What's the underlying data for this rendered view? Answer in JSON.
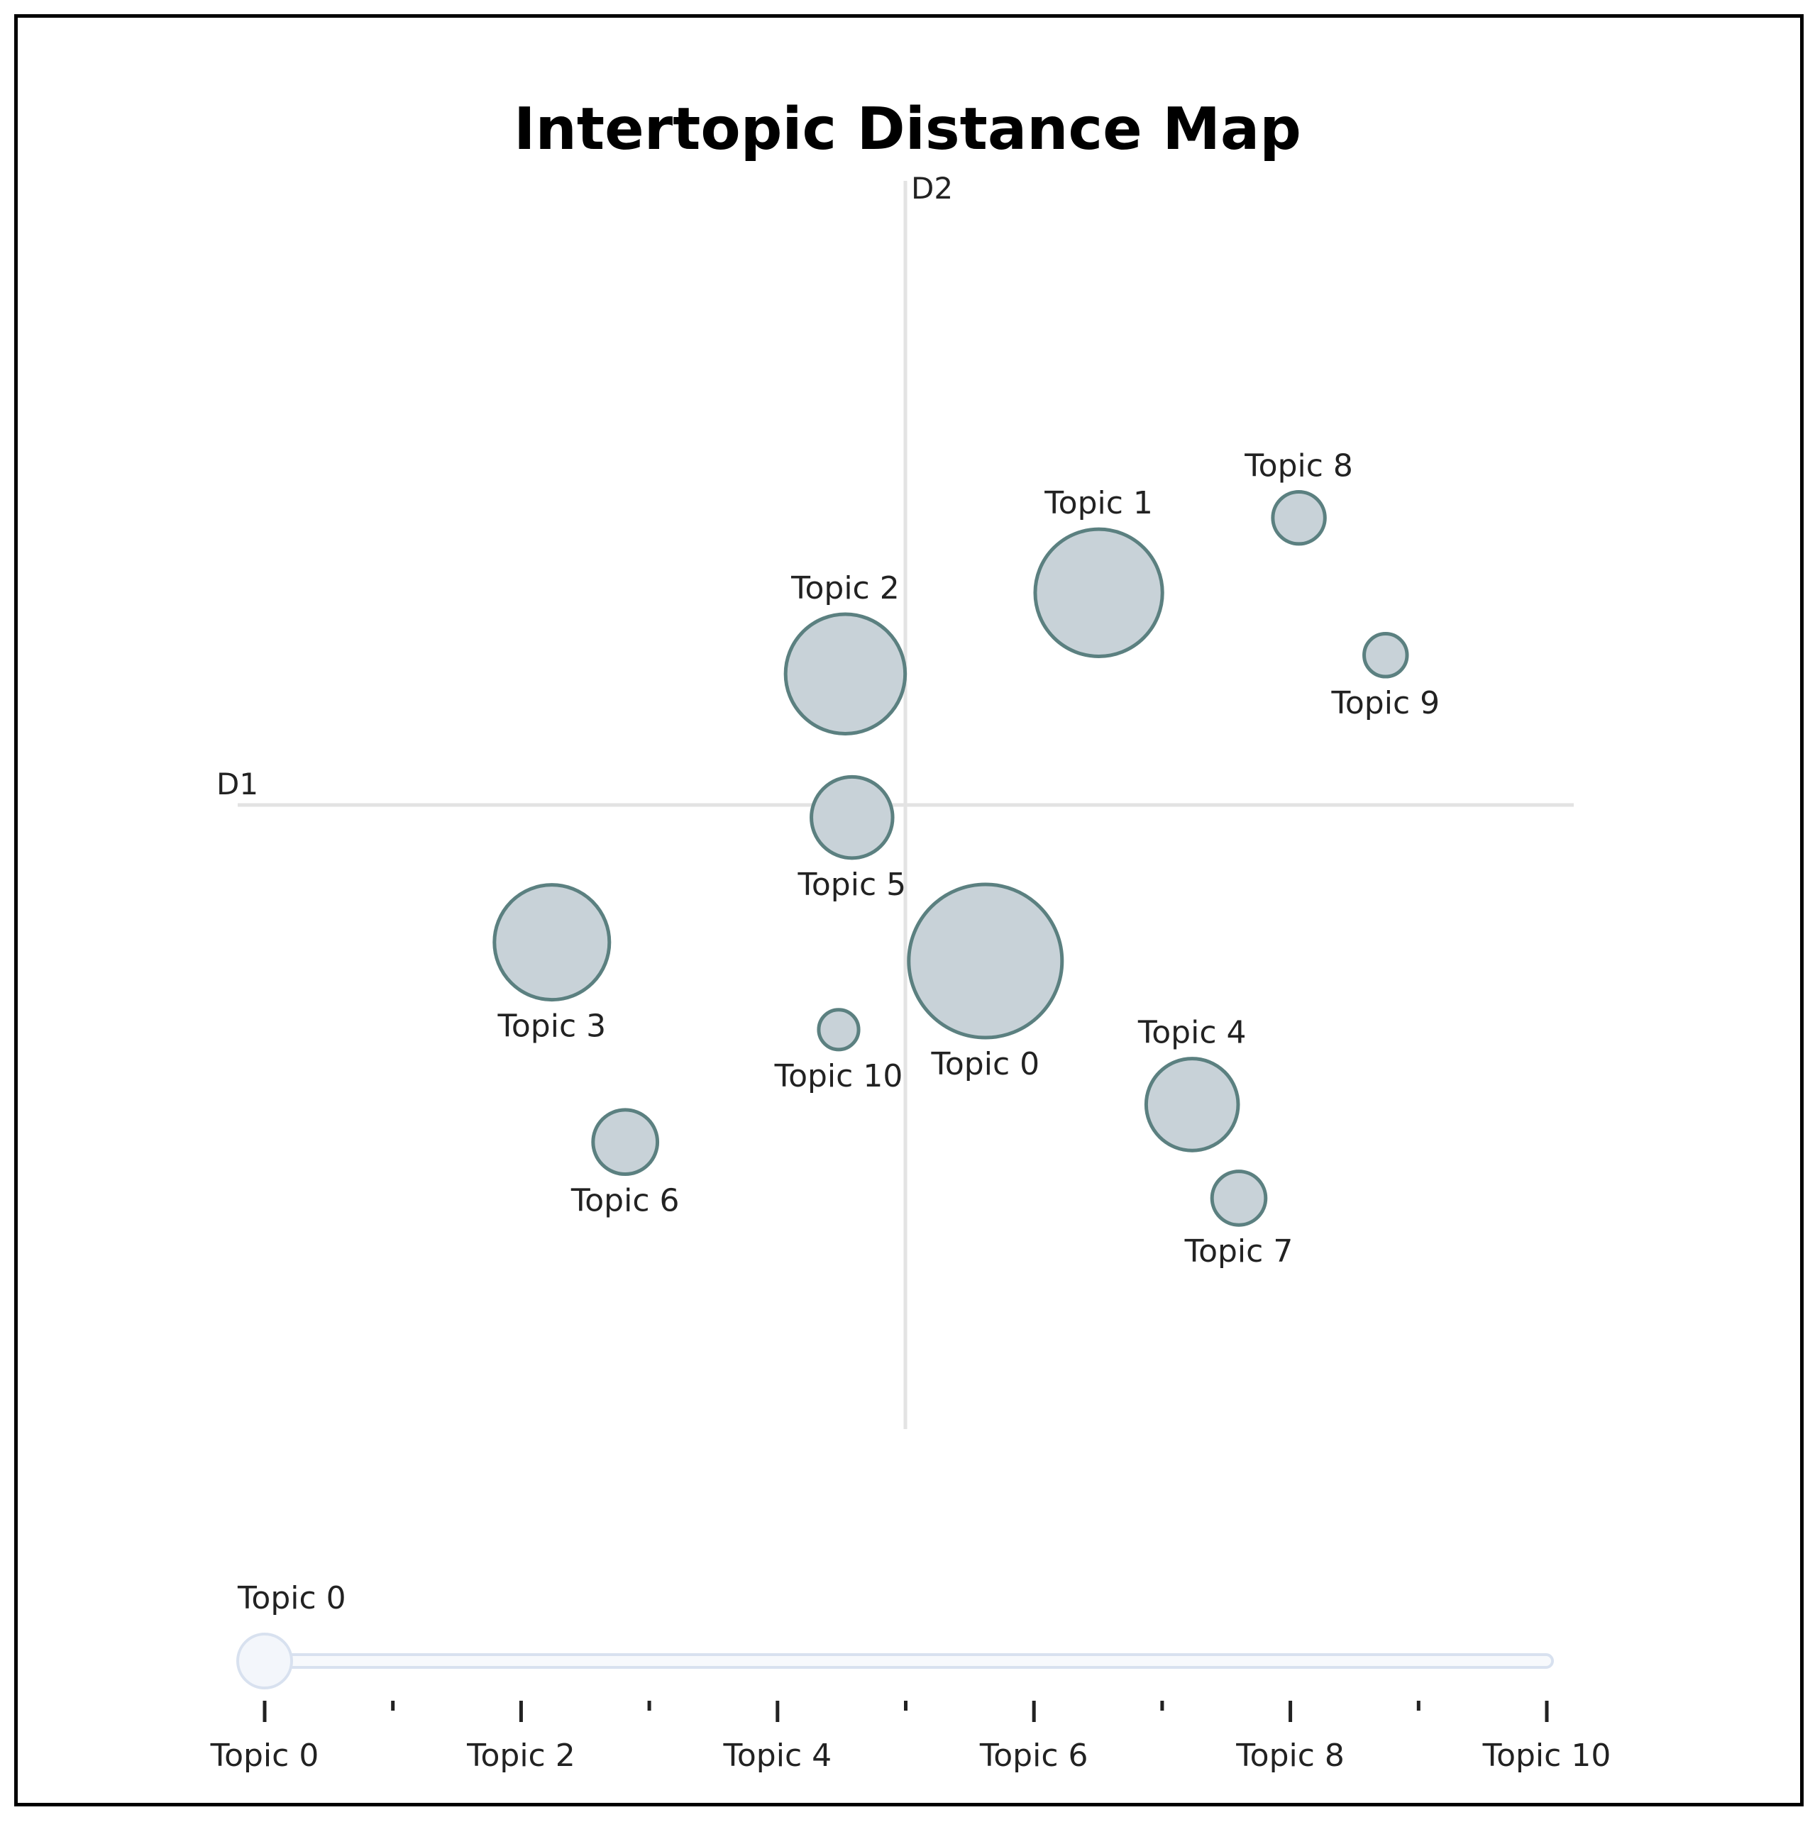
{
  "chart_data": {
    "type": "scatter",
    "title": "Intertopic Distance Map",
    "xlabel": "D1",
    "ylabel": "D2",
    "xlim": [
      -10,
      10
    ],
    "ylim": [
      -10,
      10
    ],
    "grid": false,
    "marker_fill": "#c8d2d8",
    "marker_stroke": "#5b8080",
    "axis_line_color": "#e3e3e3",
    "points": [
      {
        "label": "Topic 0",
        "x": 1.2,
        "y": -2.5,
        "size": 1.0,
        "label_position": "below"
      },
      {
        "label": "Topic 1",
        "x": 2.9,
        "y": 3.4,
        "size": 0.83,
        "label_position": "above"
      },
      {
        "label": "Topic 2",
        "x": -0.9,
        "y": 2.1,
        "size": 0.78,
        "label_position": "above"
      },
      {
        "label": "Topic 3",
        "x": -5.3,
        "y": -2.2,
        "size": 0.75,
        "label_position": "below"
      },
      {
        "label": "Topic 4",
        "x": 4.3,
        "y": -4.8,
        "size": 0.6,
        "label_position": "above"
      },
      {
        "label": "Topic 5",
        "x": -0.8,
        "y": -0.2,
        "size": 0.53,
        "label_position": "below"
      },
      {
        "label": "Topic 6",
        "x": -4.2,
        "y": -5.4,
        "size": 0.42,
        "label_position": "below"
      },
      {
        "label": "Topic 7",
        "x": 5.0,
        "y": -6.3,
        "size": 0.35,
        "label_position": "below"
      },
      {
        "label": "Topic 8",
        "x": 5.9,
        "y": 4.6,
        "size": 0.34,
        "label_position": "above"
      },
      {
        "label": "Topic 9",
        "x": 7.2,
        "y": 2.4,
        "size": 0.28,
        "label_position": "below"
      },
      {
        "label": "Topic 10",
        "x": -1.0,
        "y": -3.6,
        "size": 0.26,
        "label_position": "below"
      }
    ],
    "slider": {
      "current_label": "Topic 0",
      "current_value": 0,
      "min": 0,
      "max": 10,
      "tick_labels": [
        "Topic 0",
        "Topic 2",
        "Topic 4",
        "Topic 6",
        "Topic 8",
        "Topic 10"
      ],
      "track_color": "#d8e1ef",
      "handle_fill": "#f3f6fb"
    }
  }
}
